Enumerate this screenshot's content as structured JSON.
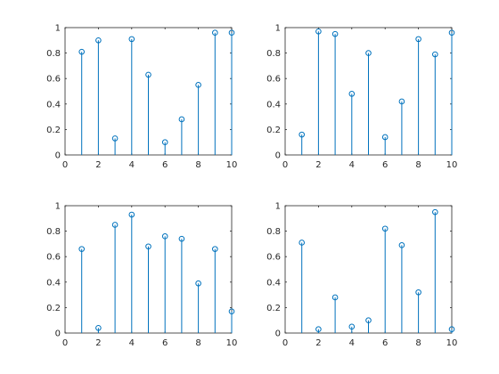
{
  "chart_data": [
    {
      "type": "stem",
      "xlim": [
        0,
        10
      ],
      "ylim": [
        0,
        1
      ],
      "xticks": [
        "0",
        "2",
        "4",
        "6",
        "8",
        "10"
      ],
      "yticks": [
        "0",
        "0.2",
        "0.4",
        "0.6",
        "0.8",
        "1"
      ],
      "x": [
        1,
        2,
        3,
        4,
        5,
        6,
        7,
        8,
        9,
        10
      ],
      "values": [
        0.81,
        0.9,
        0.13,
        0.91,
        0.63,
        0.1,
        0.28,
        0.55,
        0.96,
        0.96
      ],
      "grid": false
    },
    {
      "type": "stem",
      "xlim": [
        0,
        10
      ],
      "ylim": [
        0,
        1
      ],
      "xticks": [
        "0",
        "2",
        "4",
        "6",
        "8",
        "10"
      ],
      "yticks": [
        "0",
        "0.2",
        "0.4",
        "0.6",
        "0.8",
        "1"
      ],
      "x": [
        1,
        2,
        3,
        4,
        5,
        6,
        7,
        8,
        9,
        10
      ],
      "values": [
        0.16,
        0.97,
        0.95,
        0.48,
        0.8,
        0.14,
        0.42,
        0.91,
        0.79,
        0.96
      ],
      "grid": false
    },
    {
      "type": "stem",
      "xlim": [
        0,
        10
      ],
      "ylim": [
        0,
        1
      ],
      "xticks": [
        "0",
        "2",
        "4",
        "6",
        "8",
        "10"
      ],
      "yticks": [
        "0",
        "0.2",
        "0.4",
        "0.6",
        "0.8",
        "1"
      ],
      "x": [
        1,
        2,
        3,
        4,
        5,
        6,
        7,
        8,
        9,
        10
      ],
      "values": [
        0.66,
        0.04,
        0.85,
        0.93,
        0.68,
        0.76,
        0.74,
        0.39,
        0.66,
        0.17
      ],
      "grid": false
    },
    {
      "type": "stem",
      "xlim": [
        0,
        10
      ],
      "ylim": [
        0,
        1
      ],
      "xticks": [
        "0",
        "2",
        "4",
        "6",
        "8",
        "10"
      ],
      "yticks": [
        "0",
        "0.2",
        "0.4",
        "0.6",
        "0.8",
        "1"
      ],
      "x": [
        1,
        2,
        3,
        4,
        5,
        6,
        7,
        8,
        9,
        10
      ],
      "values": [
        0.71,
        0.03,
        0.28,
        0.05,
        0.1,
        0.82,
        0.69,
        0.32,
        0.95,
        0.03
      ],
      "grid": false
    }
  ],
  "colors": {
    "stem": "#0072bd",
    "axes": "#262626",
    "background": "#ffffff"
  }
}
